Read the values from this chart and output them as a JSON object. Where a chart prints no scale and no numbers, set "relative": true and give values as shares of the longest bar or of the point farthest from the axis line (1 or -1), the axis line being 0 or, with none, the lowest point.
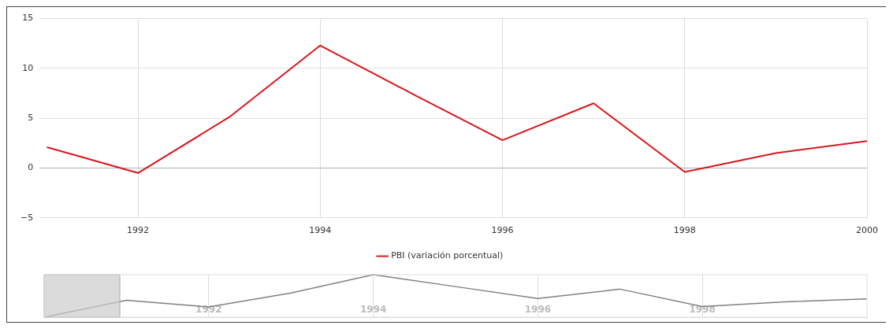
{
  "chart_data": [
    {
      "type": "line",
      "x": [
        1991,
        1992,
        1993,
        1994,
        1995,
        1996,
        1997,
        1998,
        1999,
        2000
      ],
      "xlim": [
        1990.92,
        2000
      ],
      "xticks": [
        1992,
        1994,
        1996,
        1998,
        2000
      ],
      "ylim": [
        -5,
        15
      ],
      "yticks": [
        {
          "value": -5,
          "label": "−5"
        },
        0,
        5,
        10,
        15
      ],
      "grid": true,
      "legend": "bottom",
      "marker": "none",
      "line_style": "solid",
      "series": [
        {
          "name": "PBI (variación porcentual)",
          "color": "#d9161c",
          "values": [
            2.1,
            -0.5,
            5.1,
            12.3,
            7.5,
            2.8,
            6.5,
            -0.4,
            1.5,
            2.7
          ]
        }
      ]
    },
    {
      "type": "line",
      "x": [
        1990,
        1991,
        1992,
        1993,
        1994,
        1995,
        1996,
        1997,
        1998,
        1999,
        2000
      ],
      "xlim": [
        1990,
        2000
      ],
      "xticks": [
        1992,
        1994,
        1996,
        1998
      ],
      "relative": true,
      "grid": "x",
      "tick_labels": "x",
      "marker": "none",
      "line_style": "solid",
      "bands": [
        {
          "axis": "x",
          "from": 1990,
          "to": 1990.92,
          "color": "#cccccc"
        }
      ],
      "series": [
        {
          "color": "#808080",
          "values": [
            0,
            0.4,
            0.24,
            0.57,
            1,
            0.72,
            0.44,
            0.66,
            0.25,
            0.36,
            0.43
          ]
        }
      ]
    }
  ]
}
